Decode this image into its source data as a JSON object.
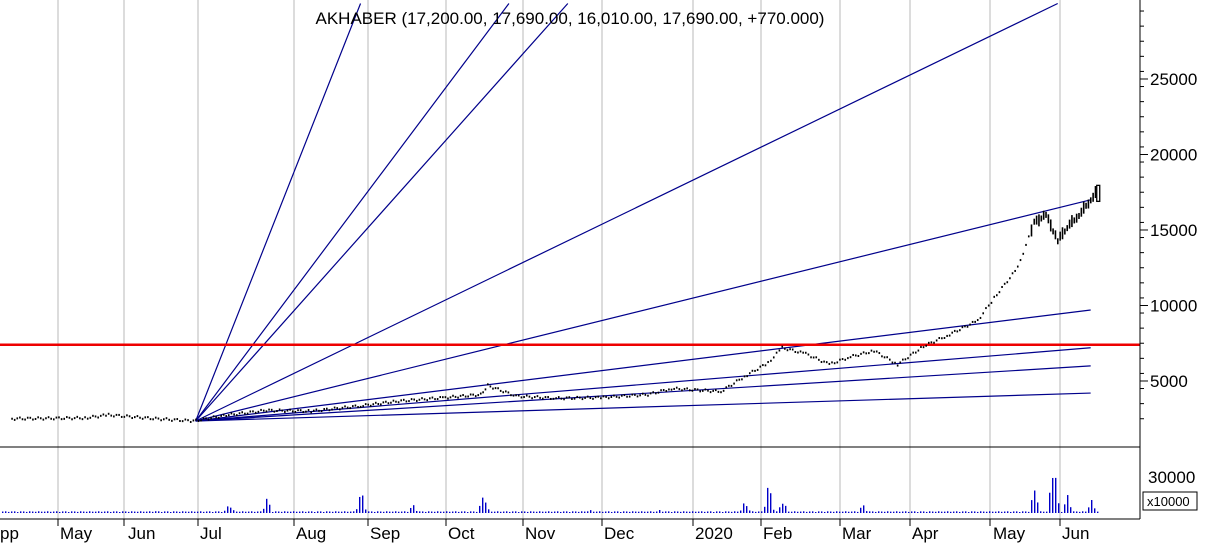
{
  "header": {
    "title": "AKHABER (17,200.00, 17,690.00, 16,010.00, 17,690.00, +770.000)"
  },
  "chart_data": {
    "type": "candlestick",
    "symbol": "AKHABER",
    "last_bar": {
      "open": 17200.0,
      "high": 17690.0,
      "low": 16010.0,
      "close": 17690.0,
      "change": 770.0
    },
    "x_labels": [
      "pp",
      "May",
      "Jun",
      "Jul",
      "Aug",
      "Sep",
      "Oct",
      "Nov",
      "Dec",
      "2020",
      "Feb",
      "Mar",
      "Apr",
      "May",
      "Jun"
    ],
    "price_axis": {
      "ticks": [
        "25000",
        "20000",
        "15000",
        "10000",
        "5000"
      ],
      "range": [
        0,
        30000
      ],
      "scale": "linear"
    },
    "volume_axis": {
      "ticks": [
        "30000",
        "0"
      ],
      "multiplier_label": "x10000"
    },
    "horizontal_line": {
      "value": 7400,
      "color": "#ee0000"
    },
    "gann_fan": {
      "origin": {
        "date": "2019-06-01",
        "price": 2350
      },
      "color": "#00008b",
      "rays": [
        {
          "date": "2019-08-10",
          "price": 30000
        },
        {
          "date": "2019-10-12",
          "price": 30000
        },
        {
          "date": "2019-11-06",
          "price": 30000
        },
        {
          "date": "2020-06-01",
          "price": 30000
        },
        {
          "date": "2020-06-15",
          "price": 17000
        },
        {
          "date": "2020-06-15",
          "price": 9700
        },
        {
          "date": "2020-06-15",
          "price": 7200
        },
        {
          "date": "2020-06-15",
          "price": 6000
        },
        {
          "date": "2020-06-15",
          "price": 4200
        }
      ]
    },
    "price_series": [
      {
        "date": "2019-03-15",
        "close": 2500
      },
      {
        "date": "2019-04-15",
        "close": 2550
      },
      {
        "date": "2019-04-25",
        "close": 2750
      },
      {
        "date": "2019-05-15",
        "close": 2500
      },
      {
        "date": "2019-05-31",
        "close": 2350
      },
      {
        "date": "2019-06-15",
        "close": 2750
      },
      {
        "date": "2019-07-01",
        "close": 3050
      },
      {
        "date": "2019-07-20",
        "close": 3000
      },
      {
        "date": "2019-08-10",
        "close": 3350
      },
      {
        "date": "2019-08-25",
        "close": 3650
      },
      {
        "date": "2019-09-15",
        "close": 3900
      },
      {
        "date": "2019-09-30",
        "close": 4100
      },
      {
        "date": "2019-10-03",
        "close": 4700
      },
      {
        "date": "2019-10-15",
        "close": 4000
      },
      {
        "date": "2019-11-01",
        "close": 3850
      },
      {
        "date": "2019-11-20",
        "close": 3900
      },
      {
        "date": "2019-12-10",
        "close": 4100
      },
      {
        "date": "2019-12-20",
        "close": 4500
      },
      {
        "date": "2020-01-10",
        "close": 4300
      },
      {
        "date": "2020-01-20",
        "close": 5300
      },
      {
        "date": "2020-01-30",
        "close": 6200
      },
      {
        "date": "2020-02-05",
        "close": 7200
      },
      {
        "date": "2020-02-15",
        "close": 6800
      },
      {
        "date": "2020-02-25",
        "close": 6100
      },
      {
        "date": "2020-03-05",
        "close": 6600
      },
      {
        "date": "2020-03-15",
        "close": 7000
      },
      {
        "date": "2020-03-25",
        "close": 6100
      },
      {
        "date": "2020-04-05",
        "close": 7300
      },
      {
        "date": "2020-04-15",
        "close": 8000
      },
      {
        "date": "2020-04-28",
        "close": 9000
      },
      {
        "date": "2020-05-05",
        "close": 10500
      },
      {
        "date": "2020-05-15",
        "close": 12500
      },
      {
        "date": "2020-05-22",
        "close": 15500
      },
      {
        "date": "2020-05-27",
        "close": 16000
      },
      {
        "date": "2020-06-01",
        "close": 14300
      },
      {
        "date": "2020-06-05",
        "close": 15200
      },
      {
        "date": "2020-06-10",
        "close": 16000
      },
      {
        "date": "2020-06-15",
        "close": 17000
      },
      {
        "date": "2020-06-18",
        "close": 17690
      }
    ],
    "volume_series": [
      {
        "date": "2019-05-15",
        "value": 2
      },
      {
        "date": "2019-06-15",
        "value": 9
      },
      {
        "date": "2019-07-01",
        "value": 14
      },
      {
        "date": "2019-08-10",
        "value": 21
      },
      {
        "date": "2019-09-01",
        "value": 8
      },
      {
        "date": "2019-10-01",
        "value": 19
      },
      {
        "date": "2019-11-15",
        "value": 3
      },
      {
        "date": "2019-12-15",
        "value": 3
      },
      {
        "date": "2020-01-20",
        "value": 11
      },
      {
        "date": "2020-01-30",
        "value": 28
      },
      {
        "date": "2020-02-05",
        "value": 12
      },
      {
        "date": "2020-03-10",
        "value": 8
      },
      {
        "date": "2020-05-22",
        "value": 24
      },
      {
        "date": "2020-05-30",
        "value": 53
      },
      {
        "date": "2020-06-05",
        "value": 17
      },
      {
        "date": "2020-06-15",
        "value": 12
      }
    ]
  }
}
